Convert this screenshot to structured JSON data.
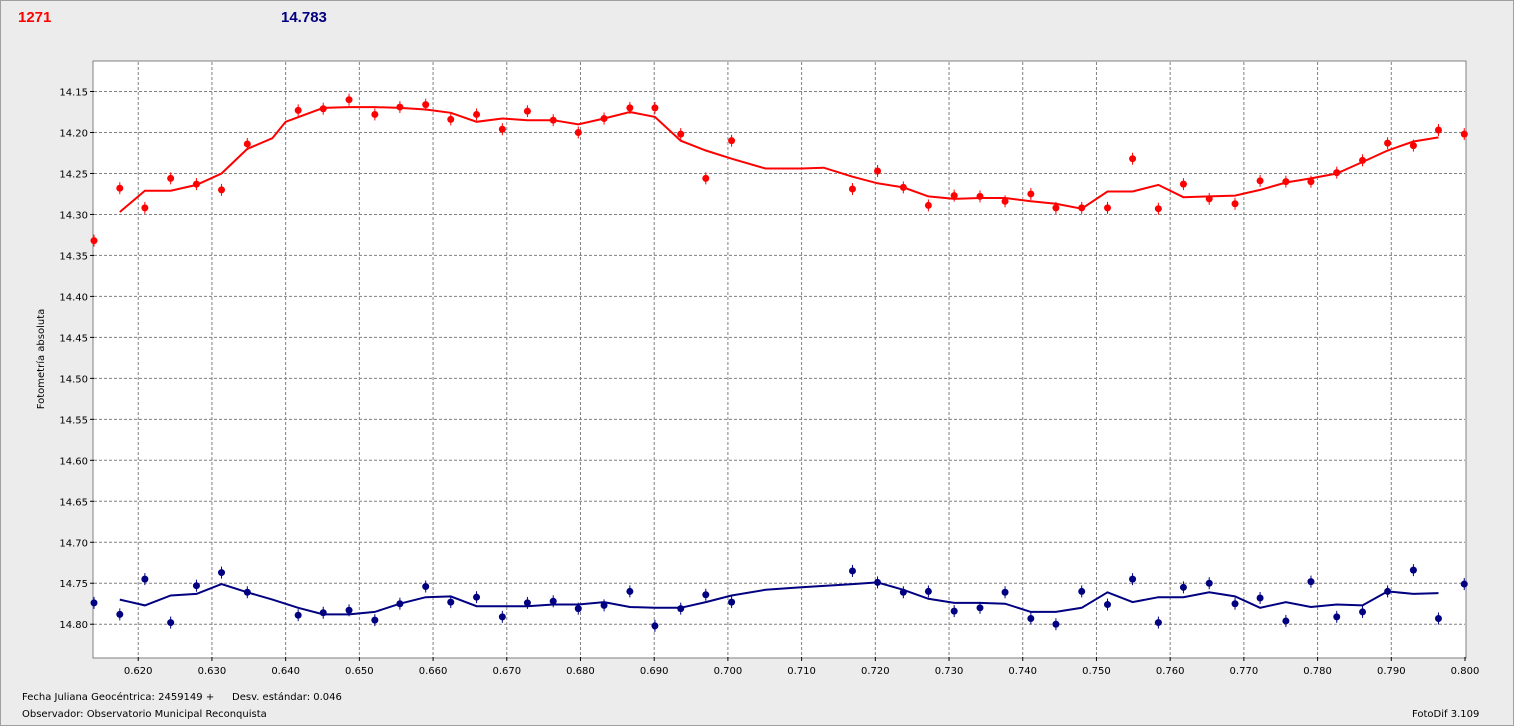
{
  "header": {
    "left_value": "1271",
    "right_value": "14.783"
  },
  "footer": {
    "julian_label": "Fecha Juliana Geocéntrica: 2459149 +",
    "stddev_label": "Desv. estándar: 0.046",
    "observer_label": "Observador: Observatorio Municipal Reconquista",
    "software_label": "FotoDif 3.109"
  },
  "chart_data": {
    "type": "scatter",
    "ylabel": "Fotometría absoluta",
    "xlabel": "",
    "xlim": [
      0.614,
      0.8
    ],
    "ylim": [
      14.114,
      14.84
    ],
    "y_inverted": true,
    "grid": true,
    "x_ticks": [
      "0.620",
      "0.630",
      "0.640",
      "0.650",
      "0.660",
      "0.670",
      "0.680",
      "0.690",
      "0.700",
      "0.710",
      "0.720",
      "0.730",
      "0.740",
      "0.750",
      "0.760",
      "0.770",
      "0.780",
      "0.790",
      "0.800"
    ],
    "y_ticks": [
      "14.15",
      "14.20",
      "14.25",
      "14.30",
      "14.35",
      "14.40",
      "14.45",
      "14.50",
      "14.55",
      "14.60",
      "14.65",
      "14.70",
      "14.75",
      "14.80"
    ],
    "series": [
      {
        "color": "#ff0000",
        "points": [
          [
            0.614,
            14.332
          ],
          [
            0.6175,
            14.268
          ],
          [
            0.6209,
            14.292
          ],
          [
            0.6244,
            14.256
          ],
          [
            0.6279,
            14.263
          ],
          [
            0.6313,
            14.27
          ],
          [
            0.6348,
            14.214
          ],
          [
            0.6417,
            14.173
          ],
          [
            0.6451,
            14.171
          ],
          [
            0.6486,
            14.16
          ],
          [
            0.6521,
            14.178
          ],
          [
            0.6555,
            14.169
          ],
          [
            0.659,
            14.166
          ],
          [
            0.6624,
            14.184
          ],
          [
            0.6659,
            14.178
          ],
          [
            0.6694,
            14.196
          ],
          [
            0.6728,
            14.174
          ],
          [
            0.6763,
            14.185
          ],
          [
            0.6797,
            14.2
          ],
          [
            0.6832,
            14.183
          ],
          [
            0.6867,
            14.17
          ],
          [
            0.6901,
            14.17
          ],
          [
            0.6936,
            14.202
          ],
          [
            0.697,
            14.256
          ],
          [
            0.7005,
            14.21
          ],
          [
            0.7169,
            14.269
          ],
          [
            0.7203,
            14.247
          ],
          [
            0.7238,
            14.267
          ],
          [
            0.7272,
            14.289
          ],
          [
            0.7307,
            14.277
          ],
          [
            0.7342,
            14.278
          ],
          [
            0.7376,
            14.284
          ],
          [
            0.7411,
            14.275
          ],
          [
            0.7445,
            14.292
          ],
          [
            0.748,
            14.292
          ],
          [
            0.7515,
            14.292
          ],
          [
            0.7549,
            14.232
          ],
          [
            0.7584,
            14.293
          ],
          [
            0.7618,
            14.263
          ],
          [
            0.7653,
            14.281
          ],
          [
            0.7688,
            14.287
          ],
          [
            0.7722,
            14.259
          ],
          [
            0.7757,
            14.26
          ],
          [
            0.7791,
            14.26
          ],
          [
            0.7826,
            14.249
          ],
          [
            0.7861,
            14.234
          ],
          [
            0.7895,
            14.213
          ],
          [
            0.793,
            14.216
          ],
          [
            0.7964,
            14.197
          ],
          [
            0.7999,
            14.202
          ]
        ],
        "trend": [
          [
            0.6175,
            14.297
          ],
          [
            0.6209,
            14.271
          ],
          [
            0.6244,
            14.271
          ],
          [
            0.6279,
            14.264
          ],
          [
            0.6313,
            14.25
          ],
          [
            0.6348,
            14.22
          ],
          [
            0.6382,
            14.207
          ],
          [
            0.64,
            14.187
          ],
          [
            0.6451,
            14.17
          ],
          [
            0.6486,
            14.169
          ],
          [
            0.6521,
            14.169
          ],
          [
            0.6555,
            14.17
          ],
          [
            0.659,
            14.172
          ],
          [
            0.6624,
            14.176
          ],
          [
            0.6659,
            14.187
          ],
          [
            0.6694,
            14.183
          ],
          [
            0.6728,
            14.185
          ],
          [
            0.6763,
            14.185
          ],
          [
            0.6797,
            14.19
          ],
          [
            0.6832,
            14.183
          ],
          [
            0.6867,
            14.175
          ],
          [
            0.6901,
            14.181
          ],
          [
            0.6936,
            14.21
          ],
          [
            0.697,
            14.222
          ],
          [
            0.7005,
            14.232
          ],
          [
            0.7051,
            14.244
          ],
          [
            0.71,
            14.244
          ],
          [
            0.713,
            14.243
          ],
          [
            0.7169,
            14.254
          ],
          [
            0.7203,
            14.262
          ],
          [
            0.7238,
            14.267
          ],
          [
            0.7272,
            14.278
          ],
          [
            0.7307,
            14.281
          ],
          [
            0.7342,
            14.28
          ],
          [
            0.7376,
            14.28
          ],
          [
            0.7411,
            14.284
          ],
          [
            0.7445,
            14.287
          ],
          [
            0.748,
            14.293
          ],
          [
            0.7515,
            14.272
          ],
          [
            0.7549,
            14.272
          ],
          [
            0.7584,
            14.264
          ],
          [
            0.7618,
            14.279
          ],
          [
            0.7653,
            14.278
          ],
          [
            0.7688,
            14.277
          ],
          [
            0.7722,
            14.27
          ],
          [
            0.7757,
            14.261
          ],
          [
            0.7791,
            14.256
          ],
          [
            0.7826,
            14.25
          ],
          [
            0.7861,
            14.236
          ],
          [
            0.7895,
            14.222
          ],
          [
            0.793,
            14.211
          ],
          [
            0.7964,
            14.206
          ]
        ]
      },
      {
        "color": "#000080",
        "points": [
          [
            0.614,
            14.774
          ],
          [
            0.6175,
            14.788
          ],
          [
            0.6209,
            14.745
          ],
          [
            0.6244,
            14.798
          ],
          [
            0.6279,
            14.753
          ],
          [
            0.6313,
            14.737
          ],
          [
            0.6348,
            14.761
          ],
          [
            0.6417,
            14.789
          ],
          [
            0.6451,
            14.786
          ],
          [
            0.6486,
            14.783
          ],
          [
            0.6521,
            14.795
          ],
          [
            0.6555,
            14.775
          ],
          [
            0.659,
            14.754
          ],
          [
            0.6624,
            14.773
          ],
          [
            0.6659,
            14.767
          ],
          [
            0.6694,
            14.791
          ],
          [
            0.6728,
            14.774
          ],
          [
            0.6763,
            14.772
          ],
          [
            0.6797,
            14.781
          ],
          [
            0.6832,
            14.777
          ],
          [
            0.6867,
            14.76
          ],
          [
            0.6901,
            14.802
          ],
          [
            0.6936,
            14.781
          ],
          [
            0.697,
            14.764
          ],
          [
            0.7005,
            14.773
          ],
          [
            0.7169,
            14.735
          ],
          [
            0.7203,
            14.749
          ],
          [
            0.7238,
            14.761
          ],
          [
            0.7272,
            14.76
          ],
          [
            0.7307,
            14.784
          ],
          [
            0.7342,
            14.78
          ],
          [
            0.7376,
            14.761
          ],
          [
            0.7411,
            14.793
          ],
          [
            0.7445,
            14.8
          ],
          [
            0.748,
            14.76
          ],
          [
            0.7515,
            14.776
          ],
          [
            0.7549,
            14.745
          ],
          [
            0.7584,
            14.798
          ],
          [
            0.7618,
            14.755
          ],
          [
            0.7653,
            14.75
          ],
          [
            0.7688,
            14.775
          ],
          [
            0.7722,
            14.768
          ],
          [
            0.7757,
            14.796
          ],
          [
            0.7791,
            14.748
          ],
          [
            0.7826,
            14.791
          ],
          [
            0.7861,
            14.785
          ],
          [
            0.7895,
            14.76
          ],
          [
            0.793,
            14.734
          ],
          [
            0.7964,
            14.793
          ],
          [
            0.7999,
            14.751
          ]
        ],
        "trend": [
          [
            0.6175,
            14.77
          ],
          [
            0.6209,
            14.777
          ],
          [
            0.6244,
            14.765
          ],
          [
            0.6279,
            14.763
          ],
          [
            0.6313,
            14.751
          ],
          [
            0.6348,
            14.761
          ],
          [
            0.6382,
            14.77
          ],
          [
            0.6417,
            14.78
          ],
          [
            0.6451,
            14.788
          ],
          [
            0.6486,
            14.788
          ],
          [
            0.6521,
            14.785
          ],
          [
            0.6555,
            14.775
          ],
          [
            0.659,
            14.767
          ],
          [
            0.6624,
            14.766
          ],
          [
            0.6659,
            14.778
          ],
          [
            0.6694,
            14.778
          ],
          [
            0.6728,
            14.778
          ],
          [
            0.6763,
            14.776
          ],
          [
            0.6797,
            14.776
          ],
          [
            0.6832,
            14.773
          ],
          [
            0.6867,
            14.779
          ],
          [
            0.6901,
            14.78
          ],
          [
            0.6936,
            14.78
          ],
          [
            0.697,
            14.773
          ],
          [
            0.7005,
            14.765
          ],
          [
            0.7051,
            14.758
          ],
          [
            0.71,
            14.755
          ],
          [
            0.7169,
            14.751
          ],
          [
            0.7203,
            14.749
          ],
          [
            0.7238,
            14.758
          ],
          [
            0.7272,
            14.769
          ],
          [
            0.7307,
            14.774
          ],
          [
            0.7342,
            14.774
          ],
          [
            0.7376,
            14.775
          ],
          [
            0.7411,
            14.785
          ],
          [
            0.7445,
            14.785
          ],
          [
            0.748,
            14.78
          ],
          [
            0.7515,
            14.761
          ],
          [
            0.7549,
            14.773
          ],
          [
            0.7584,
            14.767
          ],
          [
            0.7618,
            14.767
          ],
          [
            0.7653,
            14.761
          ],
          [
            0.7688,
            14.766
          ],
          [
            0.7722,
            14.78
          ],
          [
            0.7757,
            14.773
          ],
          [
            0.7791,
            14.779
          ],
          [
            0.7826,
            14.776
          ],
          [
            0.7861,
            14.777
          ],
          [
            0.7895,
            14.76
          ],
          [
            0.793,
            14.763
          ],
          [
            0.7964,
            14.762
          ]
        ]
      }
    ]
  }
}
